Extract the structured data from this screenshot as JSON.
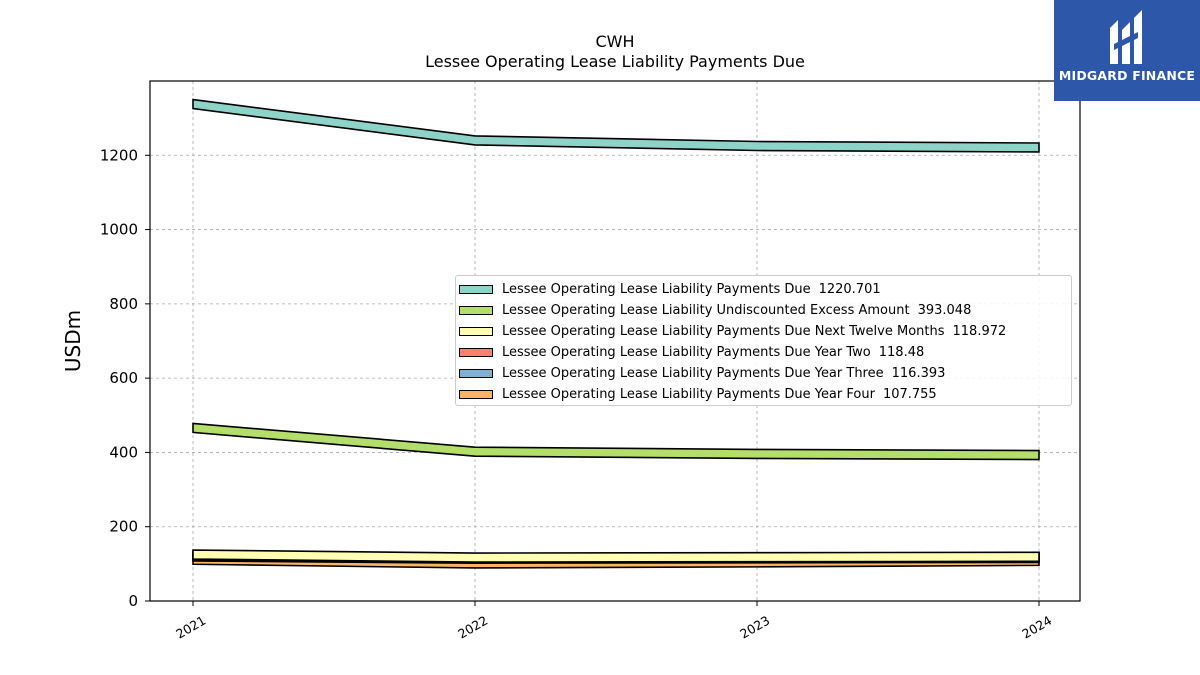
{
  "chart_data": {
    "type": "area",
    "title": "CWH",
    "subtitle": "Lessee Operating Lease Liability Payments Due",
    "ylabel": "USDm",
    "xlabel": "",
    "x": [
      "2021",
      "2022",
      "2023",
      "2024"
    ],
    "ylim": [
      0,
      1400
    ],
    "yticks": [
      0,
      200,
      400,
      600,
      800,
      1000,
      1200
    ],
    "grid": true,
    "legend_position": "center-right",
    "series": [
      {
        "name": "Lessee Operating Lease Liability Payments Due",
        "legend_value": "1220.701",
        "color": "#8dd3c7",
        "values": [
          1338,
          1240,
          1225,
          1221
        ]
      },
      {
        "name": "Lessee Operating Lease Liability Undiscounted Excess Amount",
        "legend_value": "393.048",
        "color": "#b3de69",
        "values": [
          466,
          402,
          396,
          393
        ]
      },
      {
        "name": "Lessee Operating Lease Liability Payments Due Next Twelve Months",
        "legend_value": "118.972",
        "color": "#ffffb3",
        "values": [
          125,
          117,
          118,
          119
        ]
      },
      {
        "name": "Lessee Operating Lease Liability Payments Due Year Two",
        "legend_value": "118.48",
        "color": "#fb8072",
        "values": [
          123,
          116,
          117,
          118
        ]
      },
      {
        "name": "Lessee Operating Lease Liability Payments Due Year Three",
        "legend_value": "116.393",
        "color": "#80b1d3",
        "values": [
          120,
          114,
          115,
          116
        ]
      },
      {
        "name": "Lessee Operating Lease Liability Payments Due Year Four",
        "legend_value": "107.755",
        "color": "#fdb462",
        "values": [
          111,
          101,
          104,
          108
        ]
      }
    ]
  },
  "logo": {
    "text": "MIDGARD FINANCE",
    "icon": "midgard-logo-icon",
    "background": "#2d57a8"
  }
}
